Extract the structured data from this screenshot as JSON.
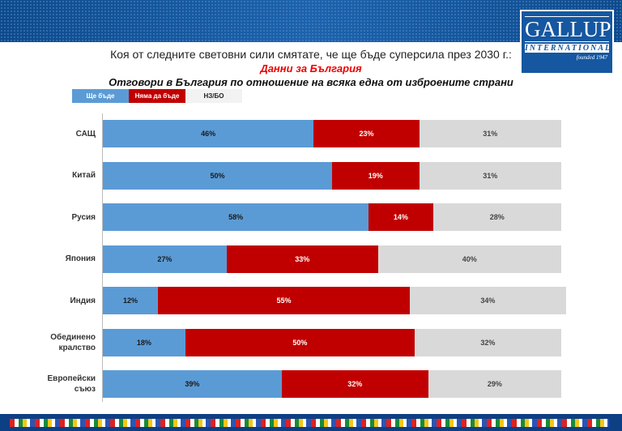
{
  "header": {
    "logo_main": "GALLUP",
    "logo_sub": "INTERNATIONAL",
    "logo_founded": "founded 1947"
  },
  "chart_data": {
    "type": "bar",
    "stacked": true,
    "orientation": "horizontal",
    "title": "Коя от следните световни сили смятате, че ще бъде суперсила през 2030 г.:",
    "subtitle": "Данни за България",
    "subtitle2": "Отговори в България по отношение на всяка една от изброените страни",
    "categories": [
      "САЩ",
      "Китай",
      "Русия",
      "Япония",
      "Индия",
      "Обединено кралство",
      "Европейски съюз"
    ],
    "series": [
      {
        "name": "Ще бъде",
        "color": "#5b9bd5",
        "text_color": "#1a1a1a",
        "values": [
          46,
          50,
          58,
          27,
          12,
          18,
          39
        ]
      },
      {
        "name": "Няма да бъде",
        "color": "#c00000",
        "text_color": "#ffffff",
        "values": [
          23,
          19,
          14,
          33,
          55,
          50,
          32
        ]
      },
      {
        "name": "НЗ/БО",
        "color": "#d9d9d9",
        "text_color": "#444444",
        "values": [
          31,
          31,
          28,
          40,
          34,
          32,
          29
        ]
      }
    ],
    "xlim": [
      0,
      100
    ],
    "value_suffix": "%",
    "legend": "top-left"
  }
}
